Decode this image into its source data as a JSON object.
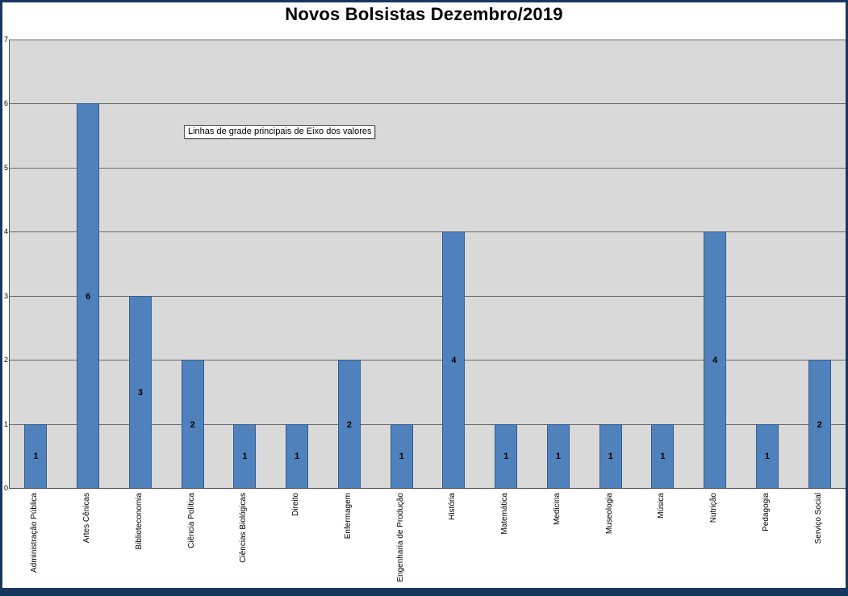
{
  "tooltip": {
    "text": "Linhas de grade principais de Eixo dos valores"
  },
  "chart_data": {
    "type": "bar",
    "title": "Novos Bolsistas Dezembro/2019",
    "categories": [
      "Administração Pública",
      "Artes Cênicas",
      "Biblioteconomia",
      "Ciência Política",
      "Ciências Biológicas",
      "Direito",
      "Enfermagem",
      "Engenharia de Produção",
      "História",
      "Matemática",
      "Medicina",
      "Museologia",
      "Música",
      "Nutrição",
      "Pedagogia",
      "Serviço Social"
    ],
    "values": [
      1,
      6,
      3,
      2,
      1,
      1,
      2,
      1,
      4,
      1,
      1,
      1,
      1,
      4,
      1,
      2
    ],
    "ylim": [
      0,
      7
    ],
    "yticks": [
      0,
      1,
      2,
      3,
      4,
      5,
      6,
      7
    ],
    "grid": true,
    "legend": "none",
    "data_labels_position": "center",
    "colors": {
      "bar_fill": "#4f81bd",
      "bar_border": "#385d8a",
      "plot_background": "#d9d9d9",
      "gridline": "#6b6b6b",
      "axis_line": "#4d4d4d",
      "outer_border": "#17375e",
      "background": "#ffffff",
      "title_color": "#000000"
    }
  }
}
